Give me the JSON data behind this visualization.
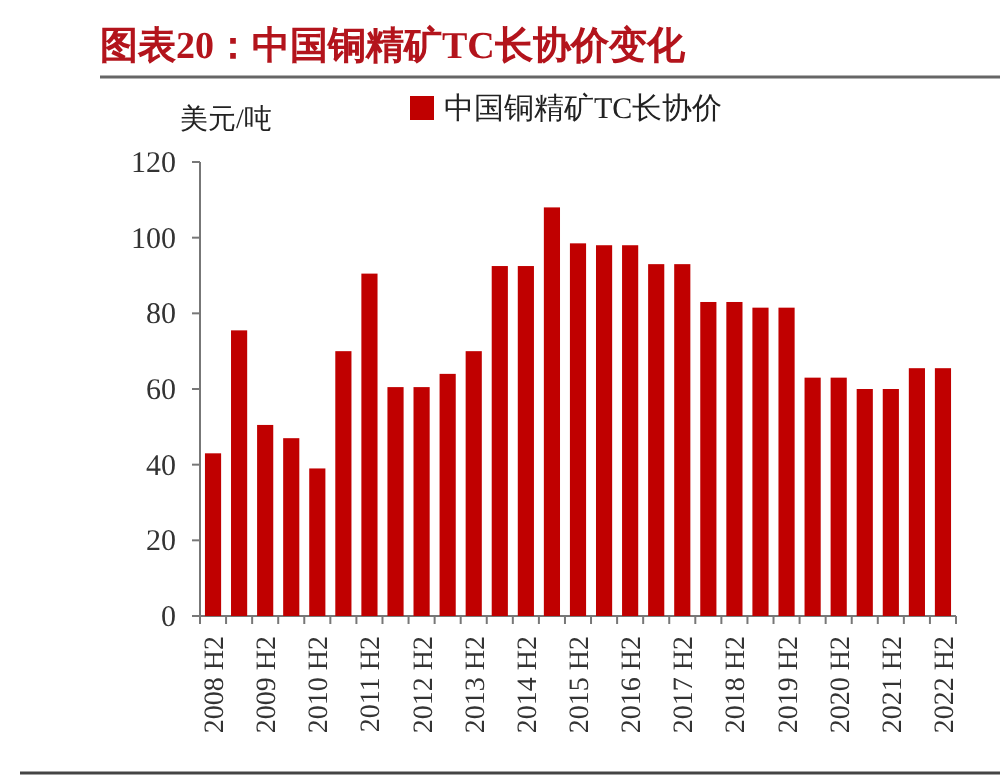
{
  "chart_data": {
    "type": "bar",
    "title": "图表20：中国铜精矿TC长协价变化",
    "ylabel": "美元/吨",
    "categories": [
      "2008 H2",
      null,
      "2009 H2",
      null,
      "2010 H2",
      null,
      "2011 H2",
      null,
      "2012 H2",
      null,
      "2013 H2",
      null,
      "2014 H2",
      null,
      "2015 H2",
      null,
      "2016 H2",
      null,
      "2017 H2",
      null,
      "2018 H2",
      null,
      "2019 H2",
      null,
      "2020 H2",
      null,
      "2021 H2",
      null,
      "2022 H2"
    ],
    "series": [
      {
        "name": "中国铜精矿TC长协价",
        "color": "#c00000",
        "values": [
          43,
          75.5,
          50.5,
          47,
          39,
          70,
          90.5,
          60.5,
          60.5,
          64,
          70,
          92.5,
          92.5,
          108,
          98.5,
          98,
          98,
          93,
          93,
          83,
          83,
          81.5,
          81.5,
          63,
          63,
          60,
          60,
          65.5,
          65.5
        ]
      }
    ],
    "ylim": [
      0,
      120
    ],
    "yticks": [
      0,
      20,
      40,
      60,
      80,
      100,
      120
    ],
    "legend": "top",
    "grid": false
  }
}
